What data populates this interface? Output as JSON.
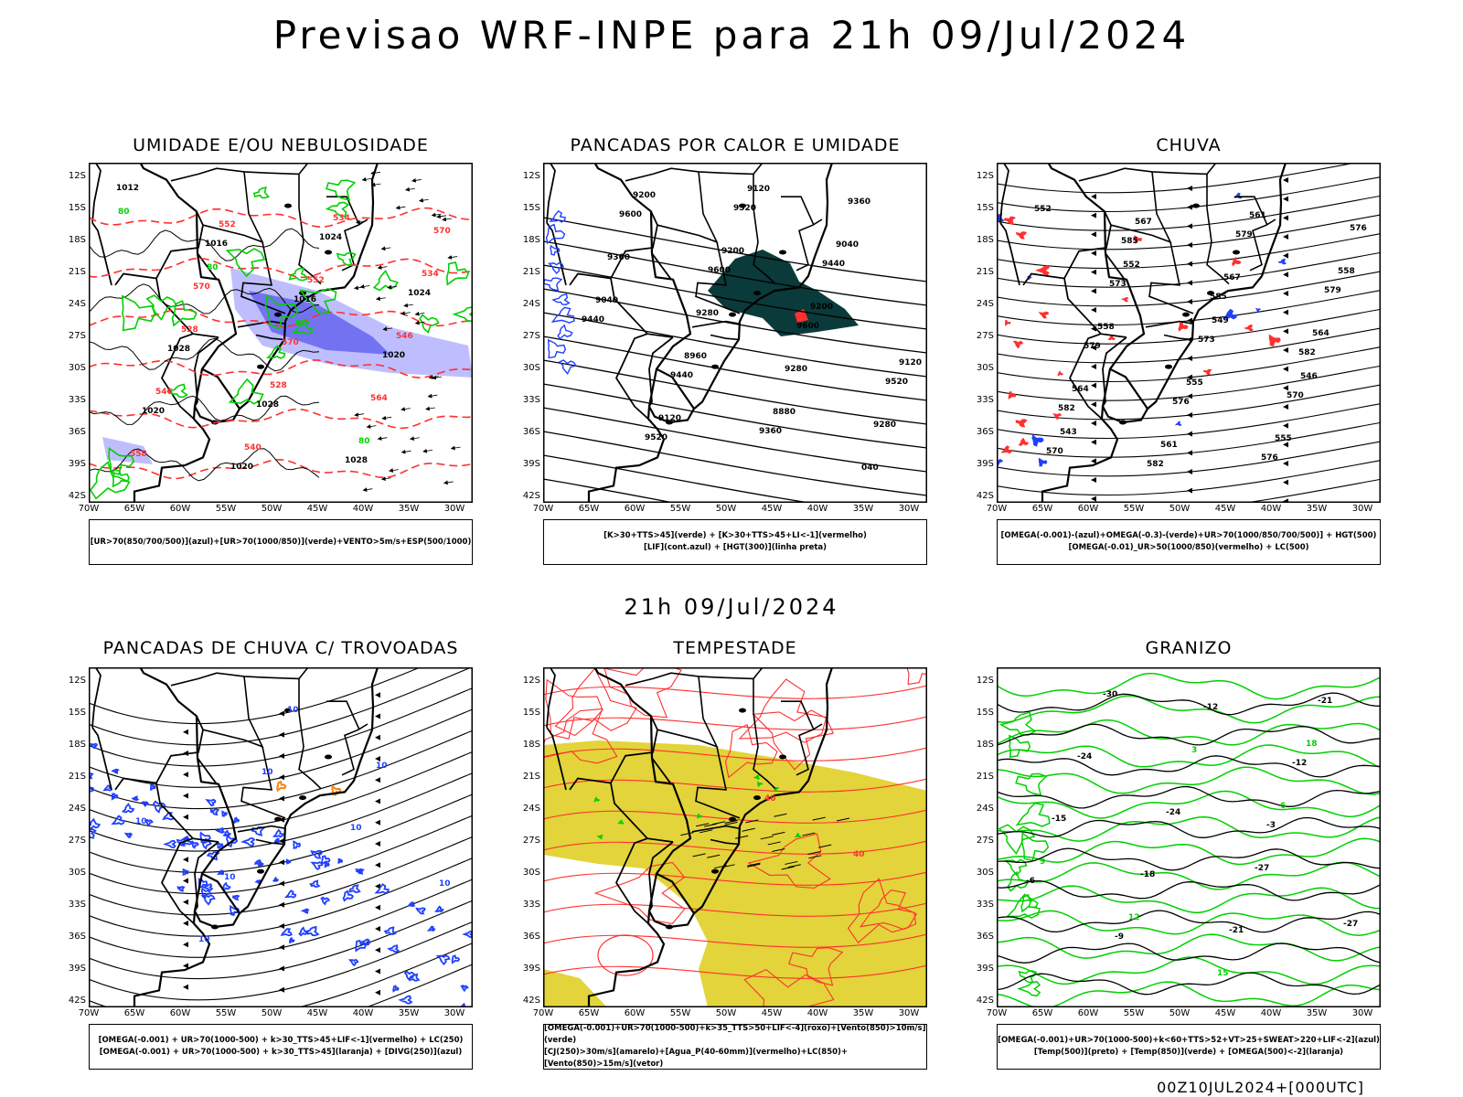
{
  "page": {
    "title": "Previsao WRF-INPE  para 21h 09/Jul/2024",
    "mid_title": "21h 09/Jul/2024",
    "footer": "00Z10JUL2024+[000UTC]"
  },
  "axes": {
    "lat_labels": [
      "12S",
      "15S",
      "18S",
      "21S",
      "24S",
      "27S",
      "30S",
      "33S",
      "36S",
      "39S",
      "42S"
    ],
    "lon_labels": [
      "70W",
      "65W",
      "60W",
      "55W",
      "50W",
      "45W",
      "40W",
      "35W",
      "30W"
    ]
  },
  "colors": {
    "green": "#00d000",
    "blue": "#2040ff",
    "red": "#ff3030",
    "dark_teal": "#0b3a3a",
    "yellow": "#e2d43a",
    "orange": "#ff8000",
    "lavender": "#b7b7ff",
    "mid_blue": "#6666ee"
  },
  "panels": [
    {
      "id": "umidade",
      "title": "UMIDADE E/OU NEBULOSIDADE",
      "legend": [
        "[UR>70(850/700/500)](azul)+[UR>70(1000/850)](verde)+VENTO>5m/s+ESP(500/1000)"
      ],
      "labels": [
        "1012",
        "1016",
        "1016",
        "1020",
        "1020",
        "1020",
        "1024",
        "1024",
        "1028",
        "1028",
        "1028",
        "570",
        "570",
        "570",
        "564",
        "558",
        "552",
        "552",
        "546",
        "546",
        "540",
        "534",
        "534",
        "528",
        "528",
        "80",
        "80",
        "80",
        "80"
      ]
    },
    {
      "id": "pancadas_calor",
      "title": "PANCADAS POR CALOR E UMIDADE",
      "legend": [
        "[K>30+TTS>45](verde) + [K>30+TTS>45+LI<-1](vermelho)",
        "[LIF](cont.azul) + [HGT(300)](linha preta)"
      ],
      "labels": [
        "9600",
        "9600",
        "9600",
        "9520",
        "9520",
        "9520",
        "9440",
        "9440",
        "9440",
        "9360",
        "9360",
        "9360",
        "9280",
        "9280",
        "9280",
        "9200",
        "9200",
        "9200",
        "9120",
        "9120",
        "9120",
        "9040",
        "9040",
        "8960",
        "8880",
        "040"
      ]
    },
    {
      "id": "chuva",
      "title": "CHUVA",
      "legend": [
        "[OMEGA(-0.001)-(azul)+OMEGA(-0.3)-(verde)+UR>70(1000/850/700/500)] + HGT(500)",
        "[OMEGA(-0.01)_UR>50(1000/850)(vermelho) + LC(500)"
      ],
      "labels": [
        "585",
        "585",
        "582",
        "582",
        "582",
        "579",
        "579",
        "579",
        "576",
        "576",
        "576",
        "573",
        "573",
        "570",
        "570",
        "567",
        "567",
        "564",
        "564",
        "561",
        "561",
        "558",
        "558",
        "555",
        "555",
        "552",
        "552",
        "549",
        "546",
        "543"
      ]
    },
    {
      "id": "pancadas_trovoadas",
      "title": "PANCADAS DE CHUVA C/ TROVOADAS",
      "legend": [
        "[OMEGA(-0.001) + UR>70(1000-500) + k>30_TTS>45+LIF<-1](vermelho) + LC(250)",
        "[OMEGA(-0.001) + UR>70(1000-500) + k>30_TTS>45](laranja) + [DIVG(250)](azul)"
      ],
      "labels": [
        "10",
        "10",
        "10",
        "10",
        "10",
        "10",
        "10",
        "10"
      ]
    },
    {
      "id": "tempestade",
      "title": "TEMPESTADE",
      "legend": [
        "[OMEGA(-0.001)+UR>70(1000-500)+k>35_TTS>50+LIF<-4](roxo)+[Vento(850)>10m/s](verde)",
        "[CJ(250)>30m/s](amarelo)+[Agua_P(40-60mm)](vermelho)+LC(850)+[Vento(850)>15m/s](vetor)"
      ],
      "labels": [
        "40",
        "40"
      ]
    },
    {
      "id": "granizo",
      "title": "GRANIZO",
      "legend": [
        "[OMEGA(-0.001)+UR>70(1000-500)+k<60+TTS>52+VT>25+SWEAT>220+LIF<-2](azul)",
        "[Temp(500)](preto) + [Temp(850)](verde) + [OMEGA(500)<-2](laranja)"
      ],
      "labels": [
        "-3",
        "-6",
        "-9",
        "-12",
        "-12",
        "-15",
        "-18",
        "-21",
        "-21",
        "-24",
        "-24",
        "-27",
        "-27",
        "-30",
        "3",
        "6",
        "9",
        "12",
        "15",
        "18"
      ]
    }
  ]
}
